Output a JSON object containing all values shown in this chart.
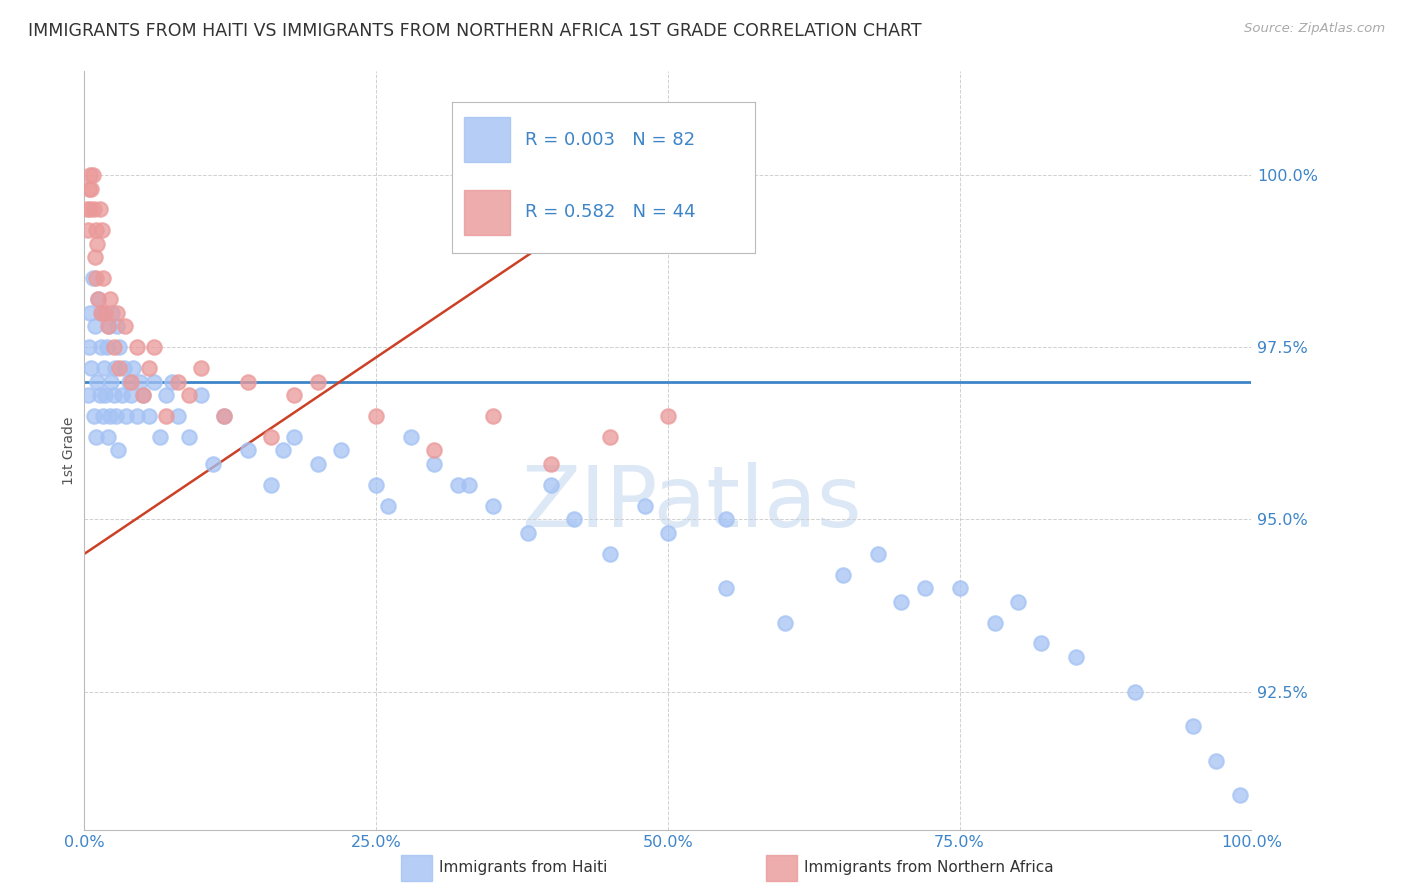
{
  "title": "IMMIGRANTS FROM HAITI VS IMMIGRANTS FROM NORTHERN AFRICA 1ST GRADE CORRELATION CHART",
  "source": "Source: ZipAtlas.com",
  "ylabel": "1st Grade",
  "xlim": [
    0.0,
    100.0
  ],
  "ylim": [
    90.5,
    101.5
  ],
  "y_ticks": [
    92.5,
    95.0,
    97.5,
    100.0
  ],
  "y_tick_labels": [
    "92.5%",
    "95.0%",
    "97.5%",
    "100.0%"
  ],
  "x_ticks": [
    0,
    25,
    50,
    75,
    100
  ],
  "x_tick_labels": [
    "0.0%",
    "25.0%",
    "50.0%",
    "75.0%",
    "100.0%"
  ],
  "legend_labels": [
    "Immigrants from Haiti",
    "Immigrants from Northern Africa"
  ],
  "R_haiti": 0.003,
  "N_haiti": 82,
  "R_nafrica": 0.582,
  "N_nafrica": 44,
  "blue_color": "#a4c2f4",
  "pink_color": "#ea9999",
  "blue_line_color": "#3d85c8",
  "pink_line_color": "#cc4125",
  "grid_color": "#cccccc",
  "title_color": "#333333",
  "source_color": "#aaaaaa",
  "axis_tick_color": "#3d85c8",
  "watermark_color": "#dce8f5",
  "haiti_x": [
    0.3,
    0.4,
    0.5,
    0.6,
    0.7,
    0.8,
    0.9,
    1.0,
    1.1,
    1.2,
    1.3,
    1.4,
    1.5,
    1.6,
    1.7,
    1.8,
    1.9,
    2.0,
    2.1,
    2.2,
    2.3,
    2.4,
    2.5,
    2.6,
    2.7,
    2.8,
    2.9,
    3.0,
    3.2,
    3.4,
    3.6,
    3.8,
    4.0,
    4.2,
    4.5,
    4.8,
    5.0,
    5.5,
    6.0,
    6.5,
    7.0,
    7.5,
    8.0,
    9.0,
    10.0,
    11.0,
    12.0,
    14.0,
    16.0,
    18.0,
    20.0,
    22.0,
    25.0,
    28.0,
    30.0,
    32.0,
    35.0,
    38.0,
    40.0,
    42.0,
    45.0,
    48.0,
    50.0,
    55.0,
    60.0,
    65.0,
    70.0,
    75.0,
    78.0,
    80.0,
    85.0,
    90.0,
    95.0,
    97.0,
    99.0,
    82.0,
    68.0,
    72.0,
    55.0,
    33.0,
    26.0,
    17.0
  ],
  "haiti_y": [
    96.8,
    97.5,
    98.0,
    97.2,
    98.5,
    96.5,
    97.8,
    96.2,
    97.0,
    98.2,
    96.8,
    97.5,
    98.0,
    96.5,
    97.2,
    96.8,
    97.5,
    96.2,
    97.8,
    96.5,
    97.0,
    98.0,
    96.8,
    97.2,
    96.5,
    97.8,
    96.0,
    97.5,
    96.8,
    97.2,
    96.5,
    97.0,
    96.8,
    97.2,
    96.5,
    97.0,
    96.8,
    96.5,
    97.0,
    96.2,
    96.8,
    97.0,
    96.5,
    96.2,
    96.8,
    95.8,
    96.5,
    96.0,
    95.5,
    96.2,
    95.8,
    96.0,
    95.5,
    96.2,
    95.8,
    95.5,
    95.2,
    94.8,
    95.5,
    95.0,
    94.5,
    95.2,
    94.8,
    94.0,
    93.5,
    94.2,
    93.8,
    94.0,
    93.5,
    93.8,
    93.0,
    92.5,
    92.0,
    91.5,
    91.0,
    93.2,
    94.5,
    94.0,
    95.0,
    95.5,
    95.2,
    96.0
  ],
  "nafrica_x": [
    0.2,
    0.3,
    0.4,
    0.5,
    0.5,
    0.6,
    0.7,
    0.8,
    0.9,
    1.0,
    1.0,
    1.1,
    1.2,
    1.3,
    1.4,
    1.5,
    1.6,
    1.8,
    2.0,
    2.2,
    2.5,
    2.8,
    3.0,
    3.5,
    4.0,
    4.5,
    5.0,
    5.5,
    6.0,
    7.0,
    8.0,
    9.0,
    10.0,
    12.0,
    14.0,
    16.0,
    18.0,
    20.0,
    25.0,
    30.0,
    35.0,
    40.0,
    45.0,
    50.0
  ],
  "nafrica_y": [
    99.5,
    99.2,
    99.8,
    100.0,
    99.5,
    99.8,
    100.0,
    99.5,
    98.8,
    99.2,
    98.5,
    99.0,
    98.2,
    99.5,
    98.0,
    99.2,
    98.5,
    98.0,
    97.8,
    98.2,
    97.5,
    98.0,
    97.2,
    97.8,
    97.0,
    97.5,
    96.8,
    97.2,
    97.5,
    96.5,
    97.0,
    96.8,
    97.2,
    96.5,
    97.0,
    96.2,
    96.8,
    97.0,
    96.5,
    96.0,
    96.5,
    95.8,
    96.2,
    96.5
  ],
  "blue_line_y": [
    97.0,
    97.0
  ],
  "pink_line_x": [
    0.0,
    50.0
  ],
  "pink_line_y": [
    94.5,
    100.2
  ]
}
